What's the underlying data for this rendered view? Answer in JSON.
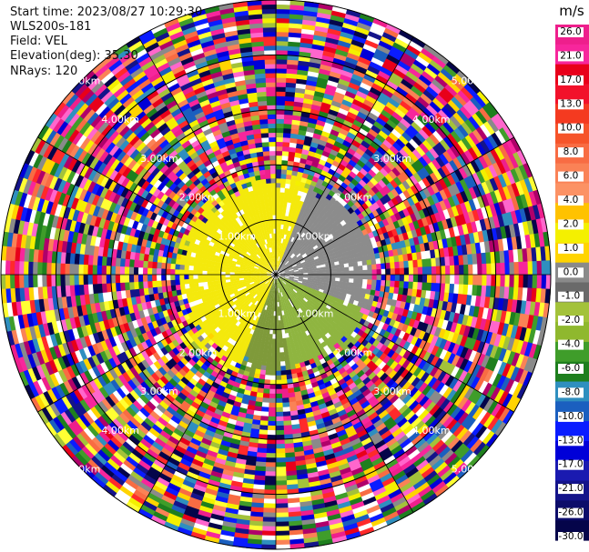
{
  "header": {
    "start_time": "Start time: 2023/08/27 10:29:30",
    "instrument": "WLS200s-181",
    "field": "Field: VEL",
    "elevation": "Elevation(deg): 35.30",
    "nrays": "NRays: 120"
  },
  "colorbar": {
    "unit": "m/s",
    "ticks": [
      "26.0",
      "21.0",
      "17.0",
      "13.0",
      "10.0",
      "8.0",
      "6.0",
      "4.0",
      "2.0",
      "1.0",
      "0.0",
      "-1.0",
      "-2.0",
      "-4.0",
      "-6.0",
      "-8.0",
      "-10.0",
      "-13.0",
      "-17.0",
      "-21.0",
      "-26.0",
      "-30.0"
    ],
    "colors": [
      "#ee1f8c",
      "#f7269c",
      "#e8001a",
      "#f2112a",
      "#f43a20",
      "#f6542a",
      "#f86c43",
      "#fa8256",
      "#fc9264",
      "#ffc200",
      "#f4f000",
      "#ffd400",
      "#8a8a8a",
      "#6a6a6a",
      "#a3c23a",
      "#8fb82e",
      "#3f9d2a",
      "#1e7f1e",
      "#2f8fbf",
      "#1b5fbf",
      "#0a1cff",
      "#0000d8",
      "#1a1ab0",
      "#14148a",
      "#0c0c6a",
      "#05054a"
    ]
  },
  "chart_data": {
    "type": "heatmap",
    "subtype": "radar PPI (plan position indicator)",
    "field": "VEL",
    "unit": "m/s",
    "nrays": 120,
    "elevation_deg": 35.3,
    "range_rings_km": [
      1.0,
      2.0,
      3.0,
      4.0,
      5.0
    ],
    "ring_labels": [
      "1.00km",
      "2.00km",
      "3.00km",
      "4.00km",
      "5.00km"
    ],
    "max_range_km": 5.0,
    "near_field_pattern": "coherent low velocities within about 2 km: yellow (about +1 to +3 m/s) west/north, grey (about 0 to -1 m/s) north-east, green (about -2 to -4 m/s) east/south; noisy random velocities beyond 2 km",
    "value_range": [
      -30.0,
      26.0
    ]
  }
}
